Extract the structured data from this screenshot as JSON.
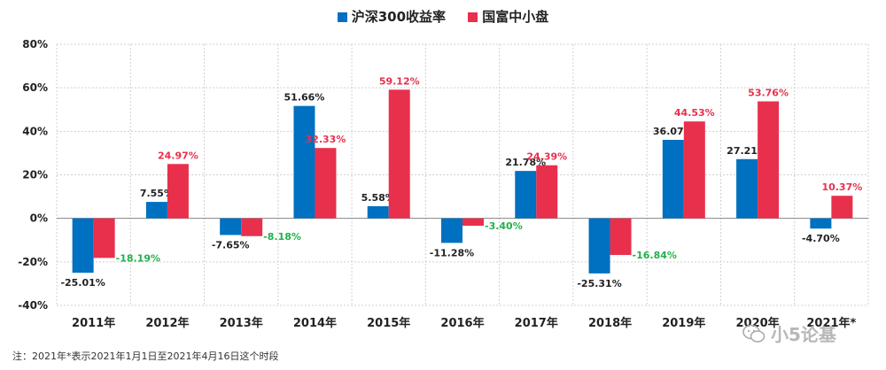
{
  "chart_data": {
    "type": "bar",
    "categories": [
      "2011年",
      "2012年",
      "2013年",
      "2014年",
      "2015年",
      "2016年",
      "2017年",
      "2018年",
      "2019年",
      "2020年",
      "2021年*"
    ],
    "series": [
      {
        "name": "沪深300收益率",
        "color": "#0070C0",
        "values": [
          -25.01,
          7.55,
          -7.65,
          51.66,
          5.58,
          -11.28,
          21.78,
          -25.31,
          36.07,
          27.21,
          -4.7
        ],
        "labels": [
          "-25.01%",
          "7.55%",
          "-7.65%",
          "51.66%",
          "5.58%",
          "-11.28%",
          "21.78%",
          "-25.31%",
          "36.07%",
          "27.21%",
          "-4.70%"
        ]
      },
      {
        "name": "国富中小盘",
        "color": "#E8304D",
        "values": [
          -18.19,
          24.97,
          -8.18,
          32.33,
          59.12,
          -3.4,
          24.39,
          -16.84,
          44.53,
          53.76,
          10.37
        ],
        "labels": [
          "-18.19%",
          "24.97%",
          "-8.18%",
          "32.33%",
          "59.12%",
          "-3.40%",
          "24.39%",
          "-16.84%",
          "44.53%",
          "53.76%",
          "10.37%"
        ]
      }
    ],
    "ylim": [
      -40,
      80
    ],
    "yticks": [
      -40,
      -20,
      0,
      20,
      40,
      60,
      80
    ],
    "ytick_labels": [
      "-40%",
      "-20%",
      "0%",
      "20%",
      "40%",
      "60%",
      "80%"
    ],
    "label_colors": {
      "positive_series1": "#222222",
      "negative_series1": "#222222",
      "positive_series2": "#E8304D",
      "negative_series2": "#22B04A"
    },
    "legend_position": "top-center",
    "grid": true
  },
  "footnote": "注：2021年*表示2021年1月1日至2021年4月16日这个时段",
  "watermark": "小5论基"
}
